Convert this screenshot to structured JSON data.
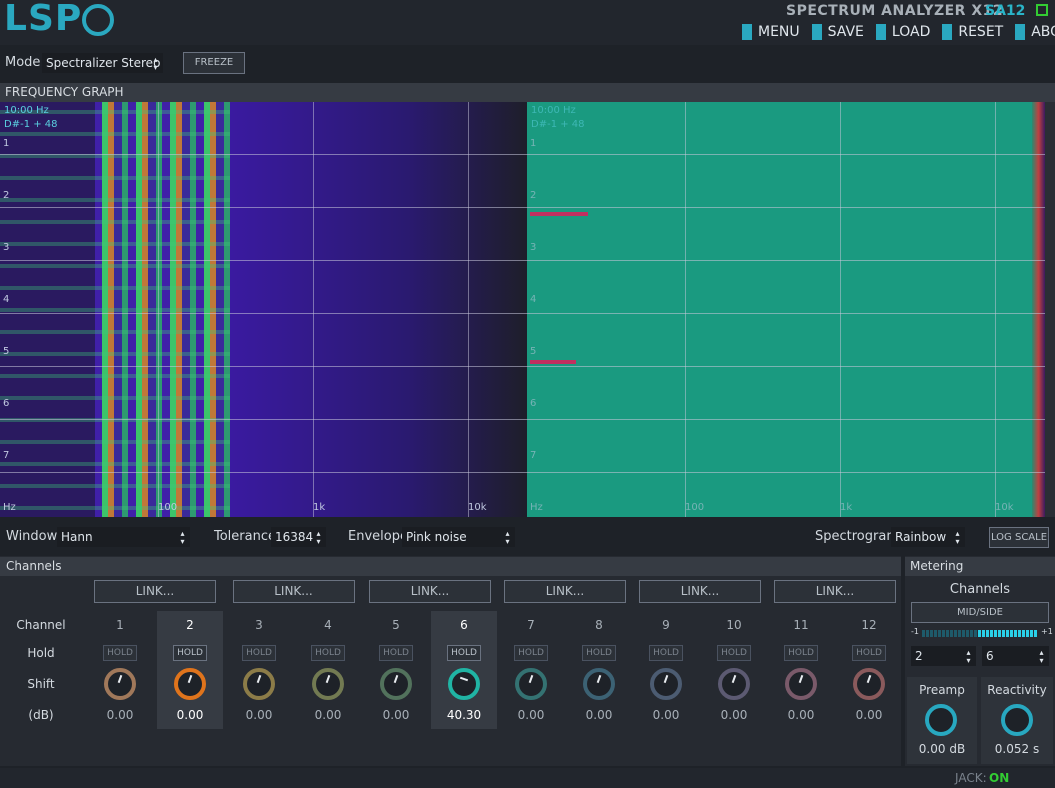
{
  "header": {
    "logo": "LSP",
    "title": "SPECTRUM ANALYZER X12",
    "code": "SA12",
    "menu": [
      "MENU",
      "SAVE",
      "LOAD",
      "RESET",
      "ABOUT"
    ]
  },
  "toolbar": {
    "mode_label": "Mode",
    "mode": "Spectralizer Stereo",
    "freeze": "FREEZE"
  },
  "graph": {
    "title": "FREQUENCY GRAPH",
    "panes": [
      {
        "readout": [
          "10:00 Hz",
          "D#-1 + 48"
        ],
        "row_labels": [
          "1",
          "2",
          "3",
          "4",
          "5",
          "6",
          "7"
        ],
        "x_labels": [
          "Hz",
          "100",
          "1k",
          "10k"
        ]
      },
      {
        "readout": [
          "10:00 Hz",
          "D#-1 + 48"
        ],
        "row_labels": [
          "1",
          "2",
          "3",
          "4",
          "5",
          "6",
          "7"
        ],
        "x_labels": [
          "Hz",
          "100",
          "1k",
          "10k"
        ]
      }
    ]
  },
  "settings": {
    "window_label": "Window",
    "window": "Hann",
    "tolerance_label": "Tolerance",
    "tolerance": "16384",
    "envelope_label": "Envelope",
    "envelope": "Pink noise",
    "spectrogram_label": "Spectrogram",
    "spectrogram": "Rainbow",
    "log_scale": "LOG SCALE"
  },
  "channels": {
    "title": "Channels",
    "links": [
      "LINK...",
      "LINK...",
      "LINK...",
      "LINK...",
      "LINK...",
      "LINK..."
    ],
    "row_labels": [
      "Channel",
      "Hold",
      "Shift",
      "(dB)"
    ],
    "items": [
      {
        "number": "1",
        "hold": "HOLD",
        "shift": "0.00",
        "knob_color": "#a0785a"
      },
      {
        "number": "2",
        "hold": "HOLD",
        "shift": "0.00",
        "knob_color": "#e0741c"
      },
      {
        "number": "3",
        "hold": "HOLD",
        "shift": "0.00",
        "knob_color": "#8c7c48"
      },
      {
        "number": "4",
        "hold": "HOLD",
        "shift": "0.00",
        "knob_color": "#727a52"
      },
      {
        "number": "5",
        "hold": "HOLD",
        "shift": "0.00",
        "knob_color": "#52725c"
      },
      {
        "number": "6",
        "hold": "HOLD",
        "shift": "40.30",
        "knob_color": "#20b4a4"
      },
      {
        "number": "7",
        "hold": "HOLD",
        "shift": "0.00",
        "knob_color": "#347272"
      },
      {
        "number": "8",
        "hold": "HOLD",
        "shift": "0.00",
        "knob_color": "#3c6274"
      },
      {
        "number": "9",
        "hold": "HOLD",
        "shift": "0.00",
        "knob_color": "#4c5c72"
      },
      {
        "number": "10",
        "hold": "HOLD",
        "shift": "0.00",
        "knob_color": "#5c5a72"
      },
      {
        "number": "11",
        "hold": "HOLD",
        "shift": "0.00",
        "knob_color": "#7a5a6a"
      },
      {
        "number": "12",
        "hold": "HOLD",
        "shift": "0.00",
        "knob_color": "#8a5a5c"
      }
    ]
  },
  "metering": {
    "title": "Metering",
    "channels_label": "Channels",
    "mid_side": "MID/SIDE",
    "scale": [
      "-1",
      "+1"
    ],
    "selects": [
      "2",
      "6"
    ],
    "preamp_label": "Preamp",
    "preamp": "0.00 dB",
    "reactivity_label": "Reactivity",
    "reactivity": "0.052 s"
  },
  "status": {
    "jack_label": "JACK:",
    "jack": "ON"
  }
}
